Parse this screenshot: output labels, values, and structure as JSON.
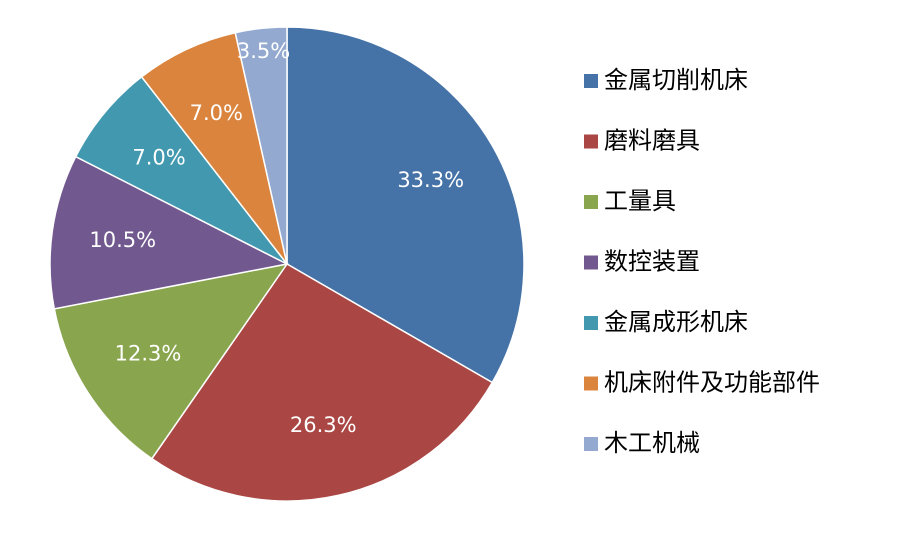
{
  "chart_data": {
    "type": "pie",
    "categories": [
      "金属切削机床",
      "磨料磨具",
      "工量具",
      "数控装置",
      "金属成形机床",
      "机床附件及功能部件",
      "木工机械"
    ],
    "values": [
      33.3,
      26.3,
      12.3,
      10.5,
      7.0,
      7.0,
      3.5
    ],
    "value_labels": [
      "33.3%",
      "26.3%",
      "12.3%",
      "10.5%",
      "7.0%",
      "7.0%",
      "3.5%"
    ],
    "colors": [
      "#4572a7",
      "#aa4643",
      "#89a54e",
      "#71588f",
      "#4198af",
      "#db843d",
      "#93a9cf"
    ],
    "legend": "right"
  }
}
